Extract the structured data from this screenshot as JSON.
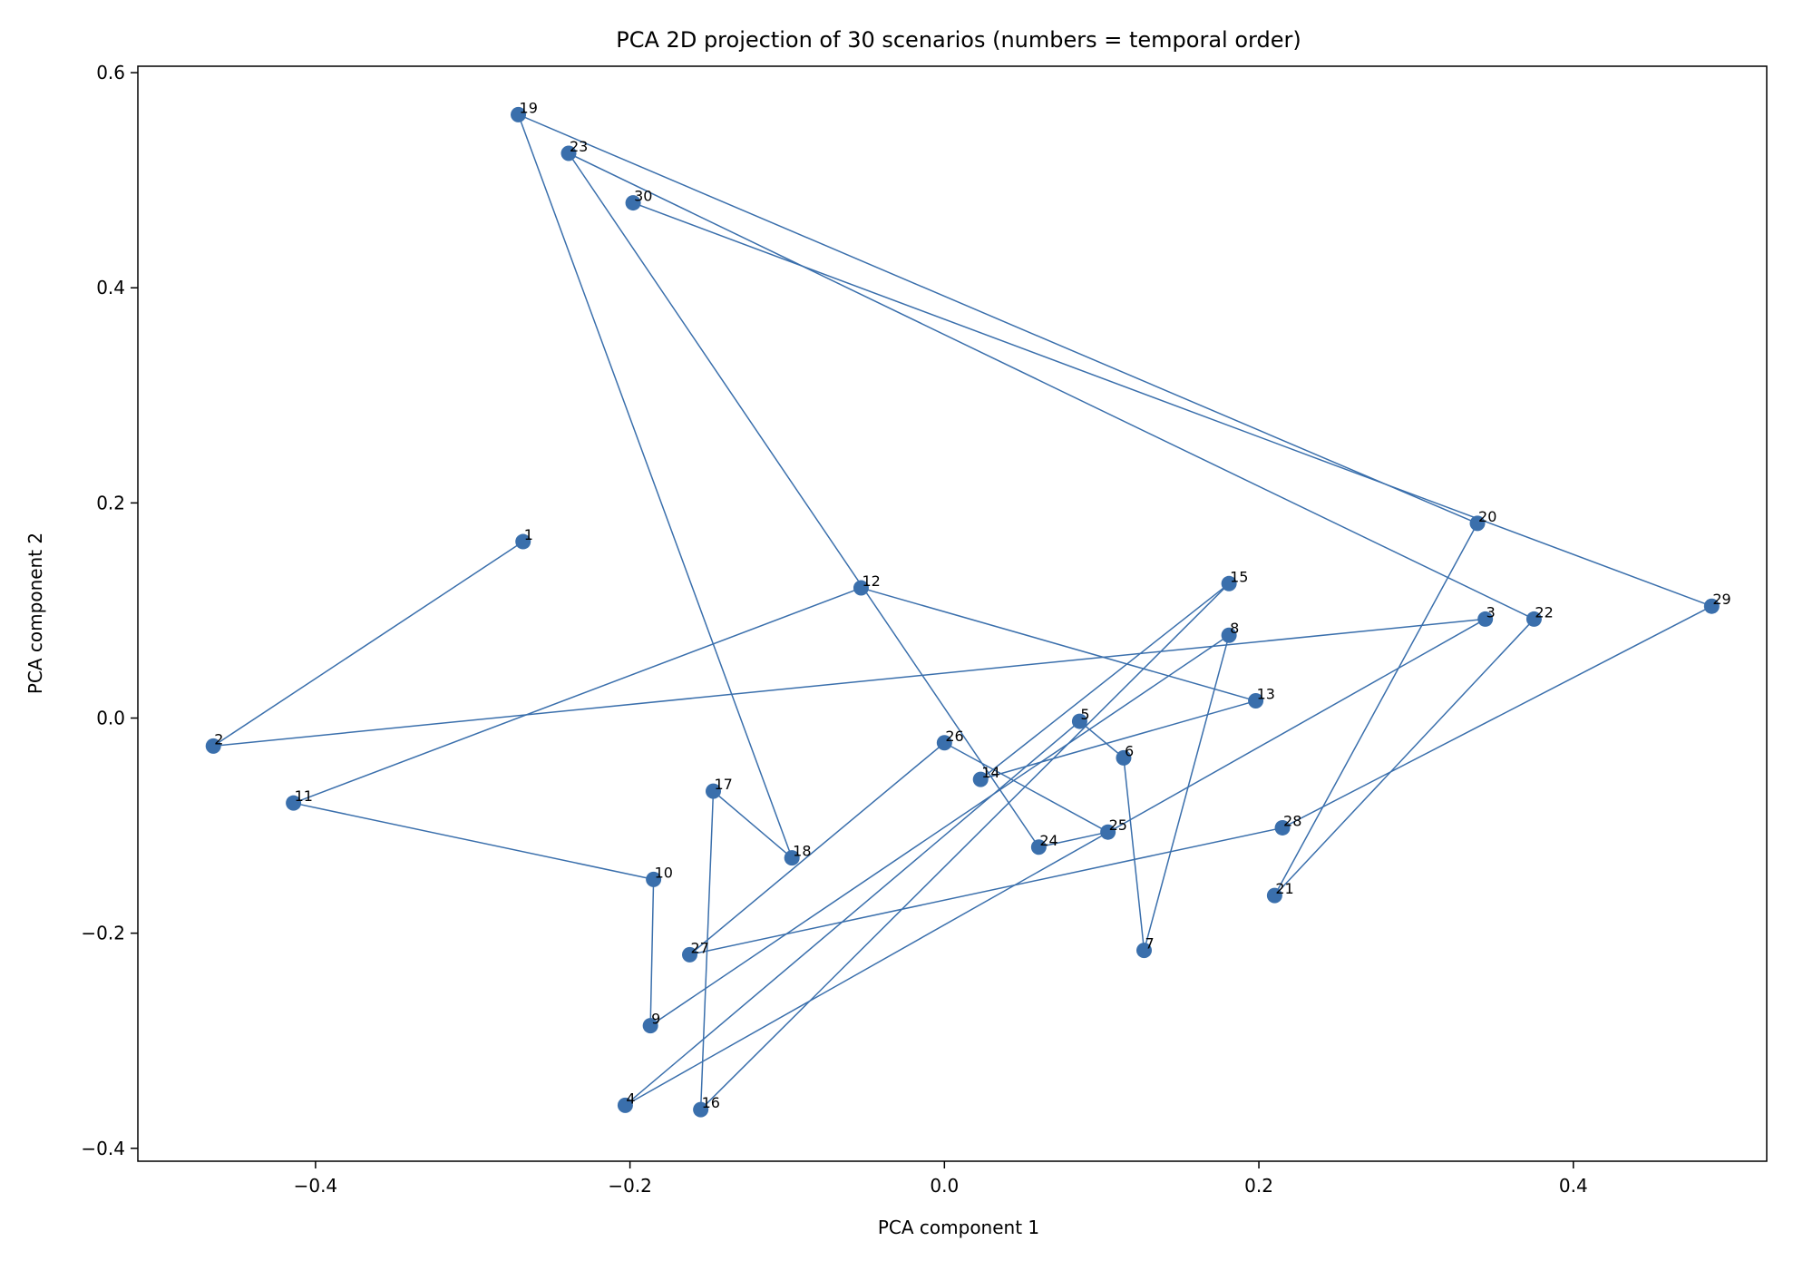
{
  "chart_data": {
    "type": "scatter",
    "title": "PCA 2D projection of 30 scenarios (numbers = temporal order)",
    "xlabel": "PCA component 1",
    "ylabel": "PCA component 2",
    "xlim": [
      -0.513,
      0.523
    ],
    "ylim": [
      -0.412,
      0.606
    ],
    "xticks": [
      -0.4,
      -0.2,
      0.0,
      0.2,
      0.4
    ],
    "xtick_labels": [
      "−0.4",
      "−0.2",
      "0.0",
      "0.2",
      "0.4"
    ],
    "yticks": [
      -0.4,
      -0.2,
      0.0,
      0.2,
      0.4,
      0.6
    ],
    "ytick_labels": [
      "−0.4",
      "−0.2",
      "0.0",
      "0.2",
      "0.4",
      "0.6"
    ],
    "grid": false,
    "color": "#3a6fac",
    "connect_in_order": true,
    "points": [
      {
        "label": "1",
        "x": -0.268,
        "y": 0.164
      },
      {
        "label": "2",
        "x": -0.465,
        "y": -0.026
      },
      {
        "label": "3",
        "x": 0.344,
        "y": 0.092
      },
      {
        "label": "4",
        "x": -0.203,
        "y": -0.36
      },
      {
        "label": "5",
        "x": 0.086,
        "y": -0.003
      },
      {
        "label": "6",
        "x": 0.114,
        "y": -0.037
      },
      {
        "label": "7",
        "x": 0.127,
        "y": -0.216
      },
      {
        "label": "8",
        "x": 0.181,
        "y": 0.077
      },
      {
        "label": "9",
        "x": -0.187,
        "y": -0.286
      },
      {
        "label": "10",
        "x": -0.185,
        "y": -0.15
      },
      {
        "label": "11",
        "x": -0.414,
        "y": -0.079
      },
      {
        "label": "12",
        "x": -0.053,
        "y": 0.121
      },
      {
        "label": "13",
        "x": 0.198,
        "y": 0.016
      },
      {
        "label": "14",
        "x": 0.023,
        "y": -0.057
      },
      {
        "label": "15",
        "x": 0.181,
        "y": 0.125
      },
      {
        "label": "16",
        "x": -0.155,
        "y": -0.364
      },
      {
        "label": "17",
        "x": -0.147,
        "y": -0.068
      },
      {
        "label": "18",
        "x": -0.097,
        "y": -0.13
      },
      {
        "label": "19",
        "x": -0.271,
        "y": 0.561
      },
      {
        "label": "20",
        "x": 0.339,
        "y": 0.181
      },
      {
        "label": "21",
        "x": 0.21,
        "y": -0.165
      },
      {
        "label": "22",
        "x": 0.375,
        "y": 0.092
      },
      {
        "label": "23",
        "x": -0.239,
        "y": 0.525
      },
      {
        "label": "24",
        "x": 0.06,
        "y": -0.12
      },
      {
        "label": "25",
        "x": 0.104,
        "y": -0.106
      },
      {
        "label": "26",
        "x": 0.0,
        "y": -0.023
      },
      {
        "label": "27",
        "x": -0.162,
        "y": -0.22
      },
      {
        "label": "28",
        "x": 0.215,
        "y": -0.102
      },
      {
        "label": "29",
        "x": 0.488,
        "y": 0.104
      },
      {
        "label": "30",
        "x": -0.198,
        "y": 0.479
      }
    ]
  }
}
